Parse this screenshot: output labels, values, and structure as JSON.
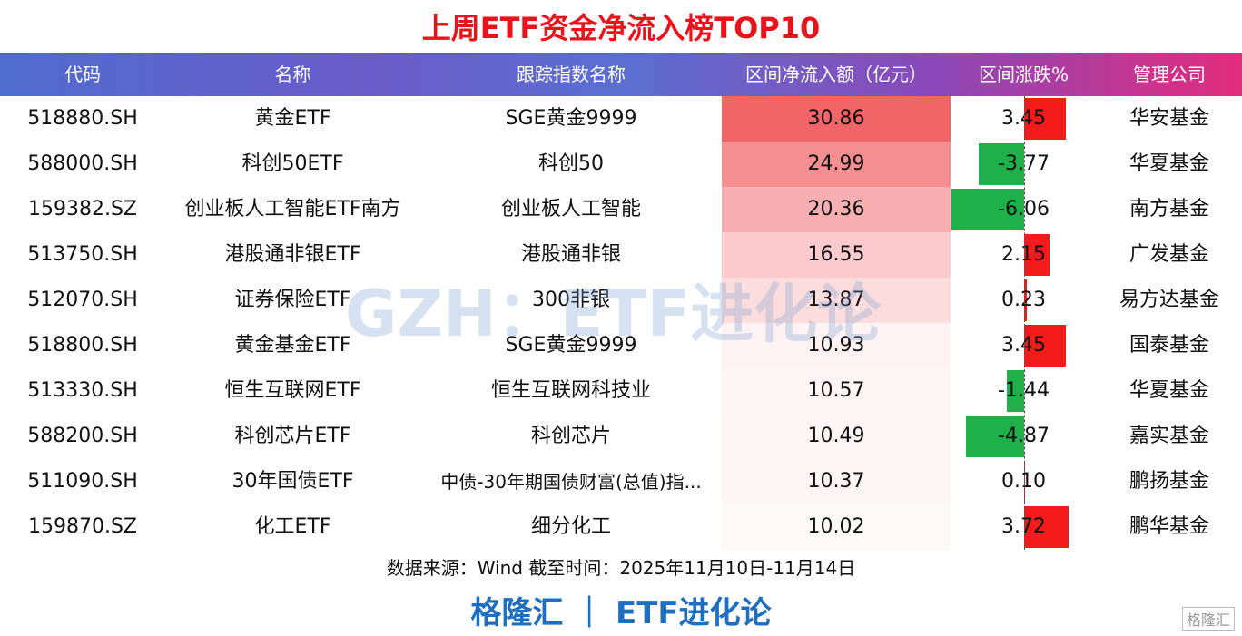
{
  "header": {
    "title": "上周ETF资金净流入榜TOP10"
  },
  "table": {
    "columns": [
      "代码",
      "名称",
      "跟踪指数名称",
      "区间净流入额（亿元）",
      "区间涨跌%",
      "管理公司"
    ],
    "rows": [
      [
        "518880.SH",
        "黄金ETF",
        "SGE黄金9999",
        "30.86",
        "3.45",
        "华安基金"
      ],
      [
        "588000.SH",
        "科创50ETF",
        "科创50",
        "24.99",
        "-3.77",
        "华夏基金"
      ],
      [
        "159382.SZ",
        "创业板人工智能ETF南方",
        "创业板人工智能",
        "20.36",
        "-6.06",
        "南方基金"
      ],
      [
        "513750.SH",
        "港股通非银ETF",
        "港股通非银",
        "16.55",
        "2.15",
        "广发基金"
      ],
      [
        "512070.SH",
        "证券保险ETF",
        "300非银",
        "13.87",
        "0.23",
        "易方达基金"
      ],
      [
        "518800.SH",
        "黄金基金ETF",
        "SGE黄金9999",
        "10.93",
        "3.45",
        "国泰基金"
      ],
      [
        "513330.SH",
        "恒生互联网ETF",
        "恒生互联网科技业",
        "10.57",
        "-1.44",
        "华夏基金"
      ],
      [
        "588200.SH",
        "科创芯片ETF",
        "科创芯片",
        "10.49",
        "-4.87",
        "嘉实基金"
      ],
      [
        "511090.SH",
        "30年国债ETF",
        "中债-30年期国债财富(总值)指...",
        "10.37",
        "0.10",
        "鹏扬基金"
      ],
      [
        "159870.SZ",
        "化工ETF",
        "细分化工",
        "10.02",
        "3.72",
        "鹏华基金"
      ]
    ]
  },
  "footer": {
    "source": "数据来源：Wind 截至时间：2025年11月10日-11月14日",
    "brand": "格隆汇 ｜ ETF进化论"
  },
  "watermark": "GZH：ETF进化论",
  "logo": "格隆汇"
}
